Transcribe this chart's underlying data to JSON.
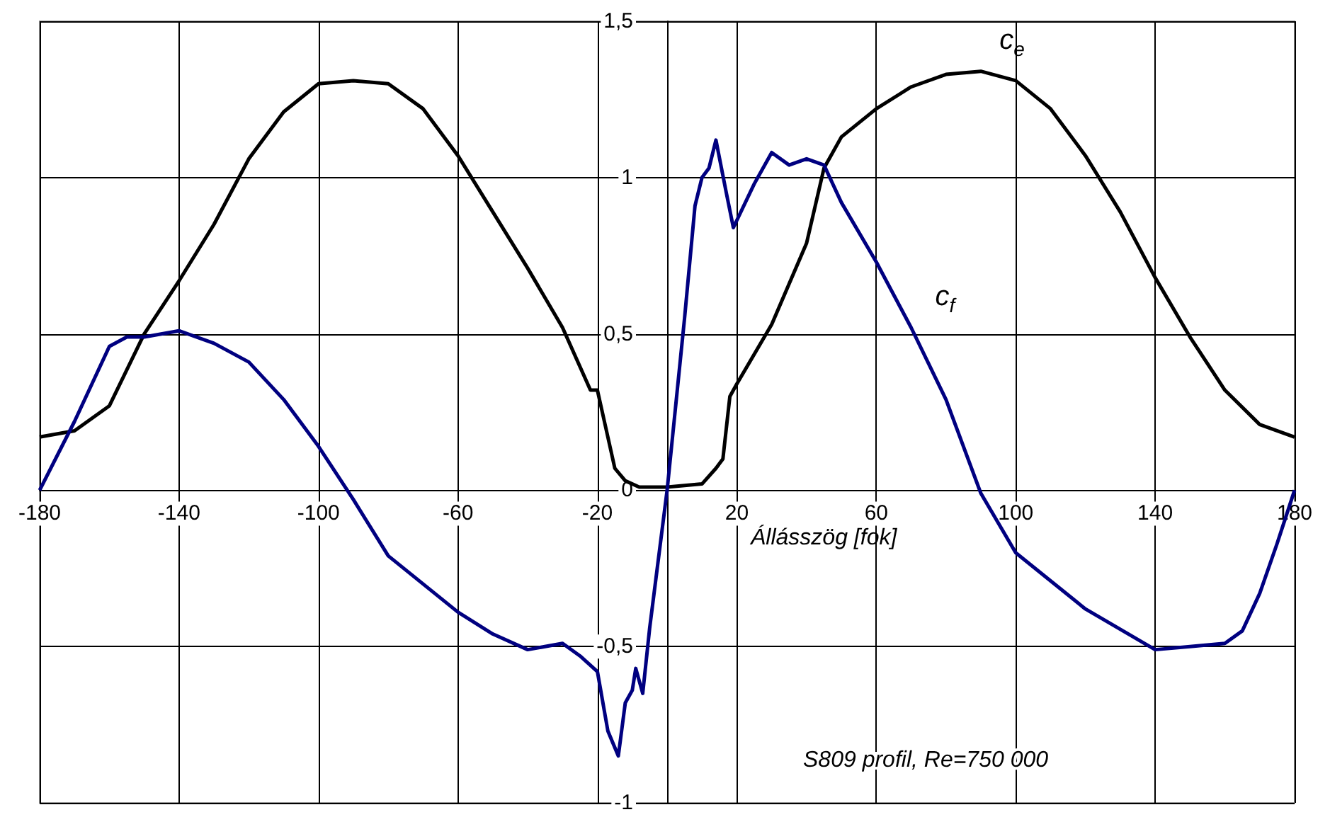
{
  "chart_data": {
    "type": "line",
    "xlabel": "Állásszög [fok]",
    "xlim": [
      -180,
      180
    ],
    "xticks": [
      -180,
      -140,
      -100,
      -60,
      -20,
      20,
      60,
      100,
      140,
      180
    ],
    "ylim": [
      -1,
      1.5
    ],
    "yticks": [
      {
        "value": -1,
        "label": "-1"
      },
      {
        "value": -0.5,
        "label": "-0,5"
      },
      {
        "value": 0,
        "label": "0"
      },
      {
        "value": 0.5,
        "label": "0,5"
      },
      {
        "value": 1,
        "label": "1"
      },
      {
        "value": 1.5,
        "label": "1,5"
      }
    ],
    "grid": true,
    "marker": "none",
    "line_style": "solid",
    "series": [
      {
        "name": "c$_{e}$",
        "color": "#000000",
        "x": [
          -180,
          -170,
          -160,
          -150,
          -140,
          -130,
          -120,
          -110,
          -100,
          -90,
          -80,
          -70,
          -60,
          -50,
          -40,
          -30,
          -22,
          -20,
          -18,
          -15,
          -12,
          -8,
          0,
          10,
          14,
          16,
          18,
          20,
          30,
          40,
          45,
          50,
          60,
          70,
          80,
          90,
          100,
          110,
          120,
          130,
          140,
          150,
          160,
          170,
          180
        ],
        "values": [
          0.17,
          0.19,
          0.27,
          0.5,
          0.67,
          0.85,
          1.06,
          1.21,
          1.3,
          1.31,
          1.3,
          1.22,
          1.07,
          0.89,
          0.71,
          0.52,
          0.32,
          0.32,
          0.22,
          0.07,
          0.03,
          0.01,
          0.01,
          0.02,
          0.07,
          0.1,
          0.3,
          0.34,
          0.53,
          0.79,
          1.03,
          1.13,
          1.22,
          1.29,
          1.33,
          1.34,
          1.31,
          1.22,
          1.07,
          0.89,
          0.68,
          0.49,
          0.32,
          0.21,
          0.17
        ]
      },
      {
        "name": "c$_{f}$",
        "color": "#000080",
        "x": [
          -180,
          -170,
          -165,
          -160,
          -155,
          -150,
          -140,
          -130,
          -120,
          -110,
          -100,
          -90,
          -80,
          -60,
          -50,
          -40,
          -30,
          -25,
          -20,
          -17,
          -14,
          -12,
          -10,
          -9,
          -7,
          -5,
          0,
          5,
          8,
          10,
          12,
          14,
          17,
          19,
          25,
          30,
          35,
          40,
          45,
          50,
          60,
          70,
          80,
          90,
          100,
          120,
          140,
          150,
          160,
          165,
          170,
          175,
          180
        ],
        "values": [
          0,
          0.22,
          0.34,
          0.46,
          0.49,
          0.49,
          0.51,
          0.47,
          0.41,
          0.29,
          0.14,
          -0.03,
          -0.21,
          -0.39,
          -0.46,
          -0.51,
          -0.49,
          -0.53,
          -0.58,
          -0.77,
          -0.85,
          -0.68,
          -0.64,
          -0.57,
          -0.65,
          -0.44,
          0,
          0.55,
          0.91,
          1.0,
          1.03,
          1.12,
          0.95,
          0.84,
          0.98,
          1.08,
          1.04,
          1.06,
          1.04,
          0.92,
          0.73,
          0.52,
          0.29,
          -0.01,
          -0.2,
          -0.38,
          -0.51,
          -0.5,
          -0.49,
          -0.45,
          -0.33,
          -0.17,
          0
        ]
      }
    ],
    "annotations": [
      "S809 profil, Re=750 000"
    ]
  }
}
